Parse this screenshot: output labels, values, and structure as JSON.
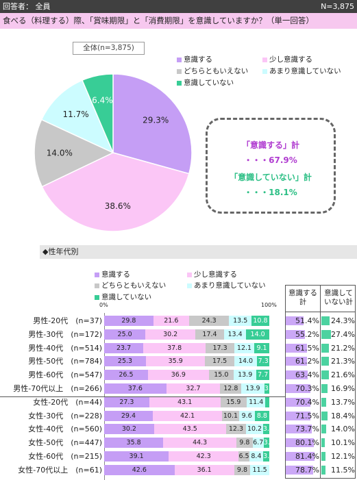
{
  "header": {
    "respondent": "回答者： 全員",
    "n": "N=3,875"
  },
  "question": "食べる（料理する）際、「賞味期限」と「消費期限」を意識していますか？（単一回答）",
  "colors": {
    "c1": "#c59ef5",
    "c2": "#fbc6f6",
    "c3": "#c8c8c8",
    "c4": "#ccfcff",
    "c5": "#38cd96",
    "header": "#404040",
    "question_bg": "#f7c8ef",
    "callout_text": "#b03cd0",
    "callout_sub": "#2cbf85"
  },
  "chart_data": [
    {
      "type": "pie",
      "title": "全体(n=3,875)",
      "categories": [
        "意識する",
        "少し意識する",
        "どちらともいえない",
        "あまり意識していない",
        "意識していない"
      ],
      "values": [
        29.3,
        38.6,
        14.0,
        11.7,
        6.4
      ],
      "value_labels": [
        "29.3%",
        "38.6%",
        "14.0%",
        "11.7%",
        "6.4%"
      ],
      "legend_position": "right"
    },
    {
      "type": "bar",
      "orientation": "horizontal",
      "stacked": true,
      "section_title": "◆性年代別",
      "axis_min_label": "0%",
      "axis_max_label": "100%",
      "series_names": [
        "意識する",
        "少し意識する",
        "どちらともいえない",
        "あまり意識していない",
        "意識していない"
      ],
      "summary_headers": [
        "意識する計",
        "意識していない計"
      ],
      "rows": [
        {
          "label": "男性-20代　(n=37)",
          "values": [
            29.8,
            21.6,
            24.3,
            13.5,
            10.8
          ],
          "sum1": "51.4%",
          "sum2": "24.3%"
        },
        {
          "label": "男性-30代　(n=172)",
          "values": [
            25.0,
            30.2,
            17.4,
            13.4,
            14.0
          ],
          "sum1": "55.2%",
          "sum2": "27.4%"
        },
        {
          "label": "男性-40代　(n=514)",
          "values": [
            23.7,
            37.8,
            17.3,
            12.1,
            9.1
          ],
          "sum1": "61.5%",
          "sum2": "21.2%"
        },
        {
          "label": "男性-50代　(n=784)",
          "values": [
            25.3,
            35.9,
            17.5,
            14.0,
            7.3
          ],
          "sum1": "61.2%",
          "sum2": "21.3%"
        },
        {
          "label": "男性-60代　(n=547)",
          "values": [
            26.5,
            36.9,
            15.0,
            13.9,
            7.7
          ],
          "sum1": "63.4%",
          "sum2": "21.6%"
        },
        {
          "label": "男性-70代以上　(n=266)",
          "values": [
            37.6,
            32.7,
            12.8,
            13.9,
            3.0
          ],
          "sum1": "70.3%",
          "sum2": "16.9%"
        },
        {
          "label": "女性-20代　(n=44)",
          "values": [
            27.3,
            43.1,
            15.9,
            11.4,
            2.3
          ],
          "sum1": "70.4%",
          "sum2": "13.7%"
        },
        {
          "label": "女性-30代　(n=228)",
          "values": [
            29.4,
            42.1,
            10.1,
            9.6,
            8.8
          ],
          "sum1": "71.5%",
          "sum2": "18.4%"
        },
        {
          "label": "女性-40代　(n=560)",
          "values": [
            30.2,
            43.5,
            12.3,
            10.2,
            3.8
          ],
          "sum1": "73.7%",
          "sum2": "14.0%"
        },
        {
          "label": "女性-50代　(n=447)",
          "values": [
            35.8,
            44.3,
            9.8,
            6.7,
            3.4
          ],
          "sum1": "80.1%",
          "sum2": "10.1%"
        },
        {
          "label": "女性-60代　(n=215)",
          "values": [
            39.1,
            42.3,
            6.5,
            8.4,
            3.7
          ],
          "sum1": "81.4%",
          "sum2": "12.1%"
        },
        {
          "label": "女性-70代以上　(n=61)",
          "values": [
            42.6,
            36.1,
            9.8,
            11.5,
            0.0
          ],
          "sum1": "78.7%",
          "sum2": "11.5%"
        }
      ]
    }
  ],
  "callout": {
    "line1": "「意識する」計",
    "line2": "・・・67.9%",
    "line3": "「意識していない」計",
    "line4": "・・・18.1%"
  }
}
